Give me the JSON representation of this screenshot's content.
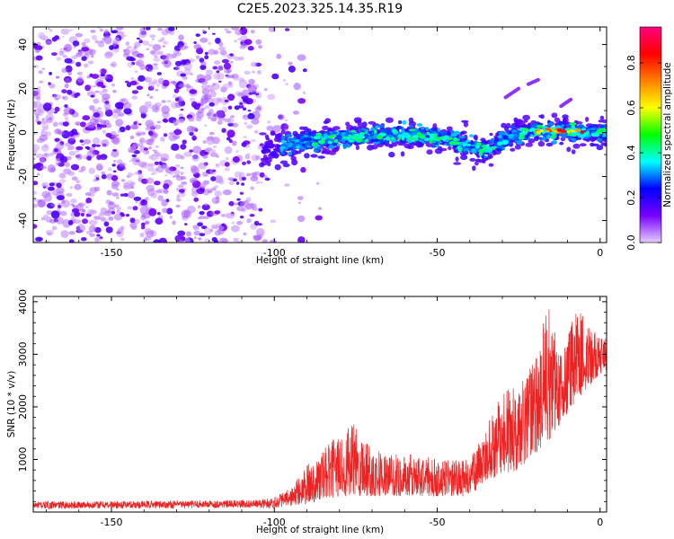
{
  "title": "C2E5.2023.325.14.35.R19",
  "chart_data": [
    {
      "type": "heatmap",
      "name": "spectrogram",
      "xlabel": "Height of straight line (km)",
      "ylabel": "Frequency (Hz)",
      "xlim": [
        -174,
        2
      ],
      "ylim": [
        -50,
        48
      ],
      "xticks": [
        -150,
        -100,
        -50,
        0
      ],
      "yticks": [
        -40,
        -20,
        0,
        20,
        40
      ],
      "colorbar": {
        "label": "Normalized spectral amplitude",
        "range": [
          0,
          0.96
        ],
        "ticks": [
          "0.0",
          "0.2",
          "0.4",
          "0.6",
          "0.8"
        ],
        "tick_values": [
          0,
          0.2,
          0.4,
          0.6,
          0.8
        ],
        "colormap": [
          "#e6ccff",
          "#7700ff",
          "#0000ff",
          "#00ffff",
          "#00ff00",
          "#ffff00",
          "#ff8000",
          "#ff0000",
          "#ff0080"
        ]
      },
      "signal_band": {
        "x_range": [
          -104,
          2
        ],
        "center_frequency_hz": [
          [
            -104,
            -8
          ],
          [
            -90,
            -4
          ],
          [
            -70,
            -1
          ],
          [
            -50,
            -2
          ],
          [
            -35,
            -8
          ],
          [
            -25,
            0
          ],
          [
            -15,
            1
          ],
          [
            -5,
            0
          ],
          [
            2,
            0
          ]
        ],
        "peak_amplitude_x_range": [
          -20,
          -5
        ]
      },
      "noise_region_x_range": [
        -174,
        -90
      ],
      "streaks": [
        {
          "x": [
            -29,
            -25
          ],
          "y": [
            16,
            20
          ]
        },
        {
          "x": [
            -22,
            -19
          ],
          "y": [
            22,
            24
          ]
        },
        {
          "x": [
            -12,
            -9
          ],
          "y": [
            12,
            15
          ]
        }
      ]
    },
    {
      "type": "line",
      "name": "snr",
      "xlabel": "Height of straight line (km)",
      "ylabel": "SNR (10 * v/v)",
      "xlim": [
        -174,
        2
      ],
      "ylim": [
        0,
        4100
      ],
      "xticks": [
        -150,
        -100,
        -50,
        0
      ],
      "yticks": [
        1000,
        2000,
        3000,
        4000
      ],
      "color": "#ee2222",
      "envelope": [
        [
          -174,
          200
        ],
        [
          -105,
          230
        ],
        [
          -100,
          300
        ],
        [
          -95,
          450
        ],
        [
          -90,
          900
        ],
        [
          -85,
          1200
        ],
        [
          -80,
          1500
        ],
        [
          -75,
          1700
        ],
        [
          -70,
          1300
        ],
        [
          -65,
          1100
        ],
        [
          -60,
          1100
        ],
        [
          -55,
          1100
        ],
        [
          -50,
          1000
        ],
        [
          -45,
          1000
        ],
        [
          -40,
          1000
        ],
        [
          -35,
          1600
        ],
        [
          -30,
          2300
        ],
        [
          -25,
          2400
        ],
        [
          -20,
          2900
        ],
        [
          -16,
          4050
        ],
        [
          -12,
          3100
        ],
        [
          -7,
          3950
        ],
        [
          -3,
          3600
        ],
        [
          0,
          3300
        ],
        [
          2,
          3300
        ]
      ],
      "floor": [
        [
          -174,
          60
        ],
        [
          -100,
          80
        ],
        [
          -90,
          150
        ],
        [
          -80,
          300
        ],
        [
          -60,
          300
        ],
        [
          -40,
          300
        ],
        [
          -35,
          600
        ],
        [
          -25,
          800
        ],
        [
          -15,
          1400
        ],
        [
          -5,
          2300
        ],
        [
          2,
          2700
        ]
      ]
    }
  ]
}
